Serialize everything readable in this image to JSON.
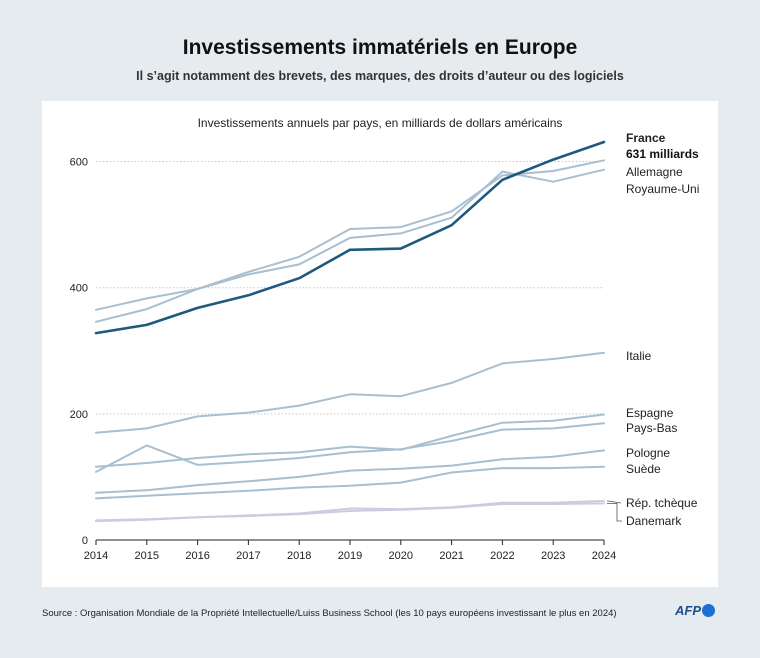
{
  "title": "Investissements immatériels en Europe",
  "subtitle": "Il s’agit notamment des brevets, des marques, des droits d’auteur ou des logiciels",
  "source": "Source : Organisation Mondiale de la Propriété Intellectuelle/Luiss Business School (les 10 pays européens investissant le plus en 2024)",
  "logo": "AFP",
  "colors": {
    "highlight": "#1d5a7e",
    "others": "#a8bfd0",
    "minor": "#cccce0"
  },
  "chart_data": {
    "type": "line",
    "title": "Investissements annuels par pays, en milliards de dollars américains",
    "xlabel": "",
    "ylabel": "",
    "x": [
      2014,
      2015,
      2016,
      2017,
      2018,
      2019,
      2020,
      2021,
      2022,
      2023,
      2024
    ],
    "ylim": [
      0,
      650
    ],
    "yticks": [
      0,
      200,
      400,
      600
    ],
    "annotation": "631 milliards",
    "series": [
      {
        "name": "France",
        "highlight": true,
        "values": [
          328,
          341,
          368,
          388,
          415,
          460,
          462,
          499,
          571,
          603,
          631
        ]
      },
      {
        "name": "Allemagne",
        "values": [
          346,
          366,
          398,
          425,
          449,
          493,
          496,
          521,
          578,
          585,
          602
        ]
      },
      {
        "name": "Royaume-Uni",
        "values": [
          365,
          383,
          398,
          421,
          437,
          479,
          486,
          511,
          584,
          568,
          587
        ]
      },
      {
        "name": "Italie",
        "values": [
          170,
          177,
          196,
          202,
          213,
          231,
          228,
          249,
          280,
          287,
          297
        ]
      },
      {
        "name": "Espagne",
        "values": [
          116,
          122,
          130,
          136,
          139,
          148,
          143,
          165,
          186,
          189,
          199
        ]
      },
      {
        "name": "Pays-Bas",
        "values": [
          108,
          150,
          119,
          124,
          130,
          139,
          144,
          157,
          175,
          177,
          185
        ]
      },
      {
        "name": "Pologne",
        "values": [
          75,
          79,
          87,
          93,
          100,
          110,
          113,
          118,
          128,
          132,
          142
        ]
      },
      {
        "name": "Suède",
        "values": [
          66,
          70,
          74,
          78,
          83,
          86,
          91,
          107,
          114,
          114,
          116
        ]
      },
      {
        "name": "Rép. tchèque",
        "minor": true,
        "values": [
          31,
          33,
          36,
          39,
          42,
          50,
          49,
          52,
          59,
          59,
          62
        ]
      },
      {
        "name": "Danemark",
        "minor": true,
        "values": [
          30,
          32,
          36,
          38,
          41,
          46,
          48,
          51,
          57,
          57,
          58
        ]
      }
    ]
  }
}
